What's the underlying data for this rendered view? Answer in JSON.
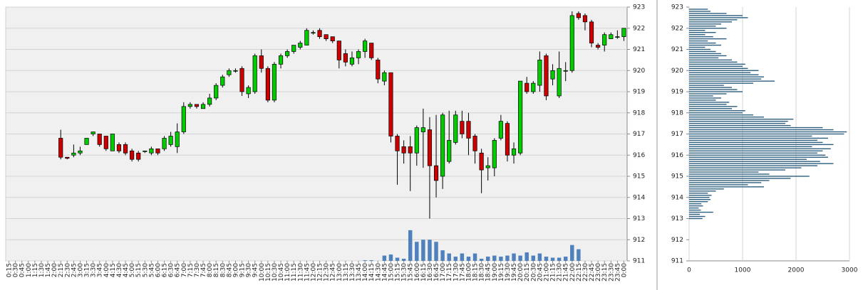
{
  "chart_data": [
    {
      "type": "candlestick",
      "categories": [
        "0:15",
        "0:30",
        "0:45",
        "1:00",
        "1:15",
        "1:30",
        "1:45",
        "2:00",
        "2:15",
        "2:30",
        "2:45",
        "3:00",
        "3:15",
        "3:30",
        "3:45",
        "4:00",
        "4:15",
        "4:30",
        "4:45",
        "5:00",
        "5:15",
        "5:30",
        "5:45",
        "6:00",
        "6:15",
        "6:30",
        "6:45",
        "7:00",
        "7:15",
        "7:30",
        "7:45",
        "8:00",
        "8:15",
        "8:30",
        "8:45",
        "9:00",
        "9:15",
        "9:30",
        "9:45",
        "10:00",
        "10:15",
        "10:30",
        "10:45",
        "11:00",
        "11:15",
        "11:30",
        "11:45",
        "12:00",
        "12:15",
        "12:30",
        "12:45",
        "13:00",
        "13:15",
        "13:30",
        "13:45",
        "14:00",
        "14:15",
        "14:30",
        "14:45",
        "15:00",
        "15:15",
        "15:30",
        "15:45",
        "16:00",
        "16:15",
        "16:30",
        "16:45",
        "17:00",
        "17:15",
        "17:30",
        "17:45",
        "18:00",
        "18:15",
        "18:30",
        "18:45",
        "19:00",
        "19:15",
        "19:30",
        "19:45",
        "20:00",
        "20:15",
        "20:30",
        "20:45",
        "21:00",
        "21:15",
        "21:30",
        "21:45",
        "22:00",
        "22:15",
        "22:30",
        "22:45",
        "23:00",
        "23:15",
        "23:30",
        "23:45",
        "0:00"
      ],
      "open": [
        null,
        null,
        null,
        null,
        null,
        null,
        null,
        null,
        916.8,
        915.9,
        916.0,
        916.1,
        916.5,
        917.0,
        917.0,
        916.9,
        916.2,
        916.5,
        916.5,
        916.2,
        916.1,
        916.2,
        916.1,
        916.3,
        916.3,
        916.5,
        916.4,
        917.1,
        918.3,
        918.4,
        918.2,
        918.4,
        918.7,
        919.3,
        919.8,
        920.0,
        920.1,
        918.9,
        919.0,
        920.7,
        920.1,
        918.6,
        920.3,
        920.7,
        920.9,
        921.1,
        921.2,
        921.8,
        921.9,
        921.7,
        921.6,
        921.4,
        920.8,
        920.3,
        920.6,
        920.9,
        921.3,
        920.5,
        919.5,
        919.9,
        916.9,
        916.4,
        916.4,
        916.1,
        917.1,
        917.2,
        915.5,
        915.0,
        915.7,
        916.6,
        917.6,
        917.6,
        916.9,
        916.1,
        915.4,
        915.4,
        916.8,
        917.5,
        916.0,
        916.1,
        919.4,
        919.0,
        919.3,
        920.7,
        919.6,
        918.8,
        920.0,
        920.0,
        922.7,
        922.6,
        922.3,
        921.2,
        921.2,
        921.5,
        921.6,
        921.6
      ],
      "high": [
        null,
        null,
        null,
        null,
        null,
        null,
        null,
        null,
        917.2,
        915.9,
        916.5,
        916.4,
        916.8,
        917.1,
        917.0,
        916.9,
        917.0,
        916.6,
        916.6,
        916.3,
        916.2,
        916.2,
        916.4,
        916.3,
        916.9,
        917.1,
        917.5,
        918.5,
        918.5,
        918.4,
        918.5,
        918.9,
        919.4,
        919.8,
        920.1,
        920.1,
        920.2,
        919.3,
        920.8,
        921.0,
        920.2,
        920.4,
        920.8,
        921.0,
        921.2,
        921.4,
        922.0,
        921.9,
        922.0,
        921.7,
        921.6,
        921.4,
        921.0,
        920.9,
        921.0,
        921.5,
        921.3,
        920.6,
        920.0,
        919.9,
        917.0,
        916.7,
        916.9,
        917.4,
        918.2,
        917.8,
        917.9,
        918.0,
        918.1,
        918.1,
        918.1,
        918.0,
        917.0,
        916.3,
        915.9,
        916.8,
        917.9,
        917.6,
        916.6,
        919.5,
        919.7,
        919.5,
        920.9,
        920.8,
        920.3,
        920.9,
        920.4,
        922.8,
        922.8,
        922.7,
        922.4,
        921.3,
        921.8,
        921.8,
        921.9,
        922.0
      ],
      "low": [
        null,
        null,
        null,
        null,
        null,
        null,
        null,
        null,
        915.8,
        915.8,
        915.9,
        916.0,
        916.5,
        916.9,
        916.4,
        916.2,
        916.2,
        916.1,
        916.0,
        915.7,
        915.7,
        916.1,
        916.0,
        916.0,
        916.2,
        916.4,
        916.1,
        917.0,
        918.2,
        918.2,
        918.2,
        918.3,
        918.6,
        919.2,
        919.7,
        919.9,
        918.8,
        918.7,
        918.9,
        919.9,
        918.5,
        918.5,
        920.1,
        920.6,
        920.8,
        921.0,
        921.2,
        921.7,
        921.5,
        921.4,
        921.3,
        920.1,
        920.2,
        920.2,
        920.3,
        920.6,
        920.5,
        919.4,
        919.3,
        916.6,
        914.6,
        915.6,
        914.3,
        915.5,
        915.4,
        913.0,
        914.0,
        914.4,
        915.6,
        916.5,
        916.8,
        916.0,
        915.6,
        914.2,
        914.8,
        915.0,
        916.7,
        915.7,
        915.6,
        916.0,
        918.9,
        918.9,
        919.0,
        918.6,
        919.3,
        918.7,
        919.5,
        919.9,
        922.4,
        921.9,
        921.1,
        921.0,
        920.9,
        921.5,
        921.5,
        921.4
      ],
      "close": [
        null,
        null,
        null,
        null,
        null,
        null,
        null,
        null,
        915.9,
        915.85,
        916.1,
        916.2,
        916.8,
        917.1,
        916.5,
        916.3,
        917.0,
        916.2,
        916.1,
        915.8,
        915.8,
        916.2,
        916.3,
        916.1,
        916.8,
        916.9,
        917.1,
        918.3,
        918.4,
        918.3,
        918.4,
        918.7,
        919.3,
        919.7,
        920.0,
        920.0,
        919.0,
        919.2,
        920.7,
        920.1,
        918.6,
        920.3,
        920.7,
        920.9,
        921.2,
        921.3,
        921.9,
        921.8,
        921.6,
        921.5,
        921.4,
        920.5,
        920.4,
        920.6,
        920.9,
        921.4,
        920.6,
        919.6,
        919.9,
        916.9,
        916.2,
        916.1,
        916.1,
        917.3,
        917.3,
        915.5,
        914.8,
        917.9,
        916.7,
        917.9,
        917.0,
        916.8,
        916.2,
        915.3,
        915.5,
        916.7,
        917.6,
        916.0,
        916.3,
        919.5,
        919.0,
        919.4,
        920.5,
        918.8,
        920.0,
        920.1,
        920.0,
        922.6,
        922.5,
        922.3,
        921.3,
        921.1,
        921.7,
        921.7,
        921.6,
        922.0
      ],
      "volume": [
        null,
        null,
        null,
        null,
        null,
        null,
        null,
        null,
        null,
        null,
        null,
        null,
        null,
        null,
        null,
        null,
        null,
        null,
        null,
        null,
        null,
        null,
        null,
        null,
        null,
        null,
        null,
        null,
        null,
        null,
        null,
        null,
        null,
        null,
        null,
        null,
        null,
        null,
        null,
        null,
        null,
        null,
        null,
        null,
        null,
        null,
        null,
        null,
        null,
        null,
        null,
        null,
        null,
        null,
        null,
        911.03,
        911.03,
        null,
        911.25,
        911.3,
        911.15,
        911.1,
        912.45,
        911.9,
        912.0,
        912.0,
        911.9,
        911.5,
        911.35,
        911.2,
        911.35,
        911.2,
        911.35,
        911.1,
        911.2,
        911.25,
        911.2,
        911.25,
        911.35,
        911.25,
        911.4,
        911.25,
        911.35,
        911.2,
        911.15,
        911.15,
        911.2,
        911.75,
        911.55,
        null,
        null,
        null,
        null,
        null,
        null,
        null
      ],
      "up_color": "#00cc00",
      "down_color": "#cc0000",
      "volume_color": "#4f81bd",
      "ylim": [
        911,
        923
      ],
      "yticks": [
        911,
        912,
        913,
        914,
        915,
        916,
        917,
        918,
        919,
        920,
        921,
        922,
        923
      ],
      "grid": true
    },
    {
      "type": "profile",
      "levels": [
        913.0,
        913.1,
        913.2,
        913.3,
        913.4,
        913.5,
        913.6,
        913.7,
        913.8,
        913.9,
        914.0,
        914.1,
        914.2,
        914.3,
        914.4,
        914.5,
        914.6,
        914.7,
        914.8,
        914.9,
        915.0,
        915.1,
        915.2,
        915.3,
        915.4,
        915.5,
        915.6,
        915.7,
        915.8,
        915.9,
        916.0,
        916.1,
        916.2,
        916.3,
        916.4,
        916.5,
        916.6,
        916.7,
        916.8,
        916.9,
        917.0,
        917.1,
        917.2,
        917.3,
        917.4,
        917.5,
        917.6,
        917.7,
        917.8,
        917.9,
        918.0,
        918.1,
        918.2,
        918.3,
        918.4,
        918.5,
        918.6,
        918.7,
        918.8,
        918.9,
        919.0,
        919.1,
        919.2,
        919.3,
        919.4,
        919.5,
        919.6,
        919.7,
        919.8,
        919.9,
        920.0,
        920.1,
        920.2,
        920.3,
        920.4,
        920.5,
        920.6,
        920.7,
        920.8,
        920.9,
        921.0,
        921.1,
        921.2,
        921.3,
        921.4,
        921.5,
        921.6,
        921.7,
        921.8,
        921.9,
        922.0,
        922.1,
        922.2,
        922.3,
        922.4,
        922.5,
        922.6,
        922.7,
        922.8,
        922.9
      ],
      "values": [
        250,
        300,
        200,
        450,
        220,
        180,
        260,
        230,
        350,
        400,
        380,
        420,
        350,
        500,
        650,
        1400,
        1100,
        1350,
        1500,
        1900,
        2250,
        1500,
        1300,
        1800,
        2100,
        2400,
        2700,
        2450,
        2200,
        2600,
        2550,
        2400,
        2500,
        2650,
        2300,
        2700,
        2500,
        2400,
        2600,
        2300,
        2900,
        2950,
        2700,
        2500,
        1900,
        1800,
        1850,
        1950,
        1400,
        1200,
        1000,
        1050,
        800,
        900,
        700,
        750,
        500,
        600,
        450,
        700,
        1000,
        900,
        800,
        650,
        1200,
        1600,
        1350,
        1400,
        1300,
        1150,
        1300,
        1100,
        1000,
        1050,
        900,
        800,
        550,
        700,
        600,
        500,
        400,
        300,
        600,
        500,
        350,
        700,
        450,
        300,
        500,
        300,
        700,
        500,
        600,
        800,
        900,
        1100,
        1000,
        700,
        400,
        350
      ],
      "color": "#2e5f7f",
      "xlim": [
        0,
        3000
      ],
      "xticks": [
        0,
        1000,
        2000,
        3000
      ],
      "ylim": [
        911,
        923
      ],
      "yticks": [
        911,
        912,
        913,
        914,
        915,
        916,
        917,
        918,
        919,
        920,
        921,
        922,
        923
      ],
      "grid": true
    }
  ]
}
